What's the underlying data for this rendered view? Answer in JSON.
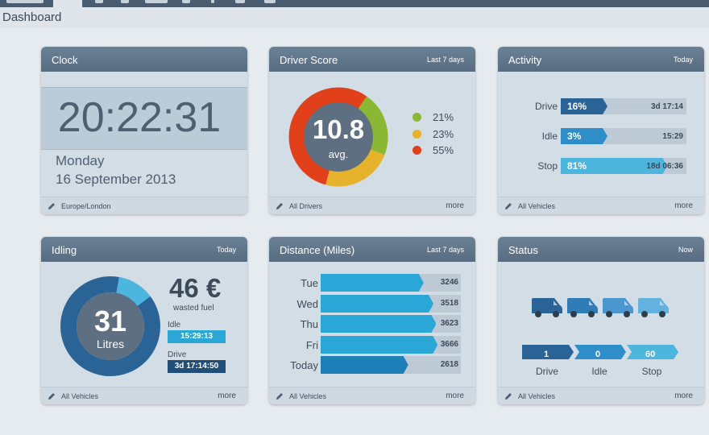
{
  "page": {
    "title": "Dashboard"
  },
  "colors": {
    "green": "#8bb832",
    "yellow": "#e6b12b",
    "red": "#e2401b",
    "blue_dark": "#2a6496",
    "blue_mid": "#2f8ec9",
    "blue_light": "#4cb6de"
  },
  "clock": {
    "title": "Clock",
    "time": "20:22:31",
    "day": "Monday",
    "date": "16 September 2013",
    "footer": "Europe/London"
  },
  "driver_score": {
    "title": "Driver Score",
    "period": "Last 7 days",
    "score": "10.8",
    "score_label": "avg.",
    "legend": [
      {
        "value": "21%",
        "color": "#8bb832"
      },
      {
        "value": "23%",
        "color": "#e6b12b"
      },
      {
        "value": "55%",
        "color": "#e2401b"
      }
    ],
    "footer": "All Drivers",
    "more": "more"
  },
  "activity": {
    "title": "Activity",
    "period": "Today",
    "rows": [
      {
        "label": "Drive",
        "pct": "16%",
        "fraction": 0.16,
        "time": "3d 17:14",
        "color": "#2a6496"
      },
      {
        "label": "Idle",
        "pct": "3%",
        "fraction": 0.03,
        "time": "15:29",
        "color": "#2f8ec9"
      },
      {
        "label": "Stop",
        "pct": "81%",
        "fraction": 0.81,
        "time": "18d 06:36",
        "color": "#4cb6de"
      }
    ],
    "footer": "All Vehicles",
    "more": "more"
  },
  "idling": {
    "title": "Idling",
    "period": "Today",
    "value": "31",
    "unit": "Litres",
    "cost": "46 €",
    "cost_label": "wasted fuel",
    "idle_label": "Idle",
    "idle_time": "15:29:13",
    "drive_label": "Drive",
    "drive_time": "3d 17:14:50",
    "idle_fraction": 0.12,
    "footer": "All Vehicles",
    "more": "more"
  },
  "distance": {
    "title": "Distance (Miles)",
    "period": "Last 7 days",
    "rows": [
      {
        "label": "Tue",
        "value": "3246",
        "fraction": 0.7,
        "color": "#2aa7d6"
      },
      {
        "label": "Wed",
        "value": "3518",
        "fraction": 0.77,
        "color": "#2aa7d6"
      },
      {
        "label": "Thu",
        "value": "3623",
        "fraction": 0.79,
        "color": "#2aa7d6"
      },
      {
        "label": "Fri",
        "value": "3666",
        "fraction": 0.8,
        "color": "#2aa7d6"
      },
      {
        "label": "Today",
        "value": "2618",
        "fraction": 0.59,
        "color": "#1e7fb8"
      }
    ],
    "footer": "All Vehicles",
    "more": "more"
  },
  "status": {
    "title": "Status",
    "period": "Now",
    "vehicles": [
      "#2a6496",
      "#2f7cb6",
      "#4a96cf",
      "#62b1de"
    ],
    "items": [
      {
        "value": "1",
        "label": "Drive",
        "color": "#2a6496"
      },
      {
        "value": "0",
        "label": "Idle",
        "color": "#2f8ec9"
      },
      {
        "value": "60",
        "label": "Stop",
        "color": "#4cb6de"
      }
    ],
    "footer": "All Vehicles",
    "more": "more"
  }
}
